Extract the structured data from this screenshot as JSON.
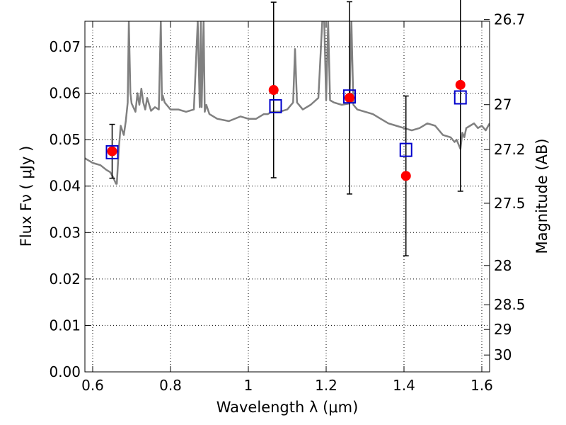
{
  "chart_data": {
    "type": "scatter",
    "xlabel": "Wavelength  λ (μm)",
    "ylabel": "Flux  Fν  ( μJy )",
    "y2label": "Magnitude (AB)",
    "xlim": [
      0.58,
      1.62
    ],
    "ylim": [
      0.0,
      0.0755
    ],
    "x_ticks": [
      0.6,
      0.8,
      1.0,
      1.2,
      1.4,
      1.6
    ],
    "x_tick_labels": [
      "0.6",
      "0.8",
      "1",
      "1.2",
      "1.4",
      "1.6"
    ],
    "y_ticks": [
      0.0,
      0.01,
      0.02,
      0.03,
      0.04,
      0.05,
      0.06,
      0.07
    ],
    "y_tick_labels": [
      "0.00",
      "0.01",
      "0.02",
      "0.03",
      "0.04",
      "0.05",
      "0.06",
      "0.07"
    ],
    "magnitude_ticks": [
      26.7,
      27,
      27.2,
      27.5,
      28,
      28.5,
      29,
      30
    ],
    "magnitude_tick_labels": [
      "26.7",
      "27",
      "27.2",
      "27.5",
      "28",
      "28.5",
      "29",
      "30"
    ],
    "grid": true,
    "series": [
      {
        "kind": "line",
        "color": "#808080",
        "x": [
          0.58,
          0.6,
          0.62,
          0.635,
          0.645,
          0.652,
          0.66,
          0.662,
          0.667,
          0.672,
          0.68,
          0.685,
          0.69,
          0.693,
          0.697,
          0.7,
          0.71,
          0.715,
          0.72,
          0.725,
          0.73,
          0.735,
          0.74,
          0.75,
          0.76,
          0.77,
          0.775,
          0.778,
          0.78,
          0.785,
          0.79,
          0.8,
          0.82,
          0.84,
          0.86,
          0.87,
          0.875,
          0.878,
          0.88,
          0.885,
          0.888,
          0.892,
          0.9,
          0.92,
          0.95,
          0.98,
          1.0,
          1.02,
          1.04,
          1.05,
          1.06,
          1.08,
          1.1,
          1.115,
          1.12,
          1.125,
          1.14,
          1.16,
          1.18,
          1.19,
          1.195,
          1.2,
          1.205,
          1.21,
          1.22,
          1.24,
          1.26,
          1.265,
          1.27,
          1.28,
          1.3,
          1.32,
          1.34,
          1.36,
          1.38,
          1.4,
          1.42,
          1.44,
          1.46,
          1.48,
          1.5,
          1.52,
          1.53,
          1.535,
          1.545,
          1.55,
          1.555,
          1.56,
          1.57,
          1.58,
          1.59,
          1.6,
          1.61,
          1.62
        ],
        "y": [
          0.046,
          0.045,
          0.0445,
          0.0435,
          0.043,
          0.042,
          0.0405,
          0.0405,
          0.048,
          0.053,
          0.051,
          0.054,
          0.058,
          0.0755,
          0.06,
          0.0578,
          0.056,
          0.06,
          0.0575,
          0.061,
          0.058,
          0.0565,
          0.059,
          0.0562,
          0.057,
          0.0565,
          0.0755,
          0.0585,
          0.0595,
          0.058,
          0.0575,
          0.0565,
          0.0565,
          0.056,
          0.0565,
          0.0755,
          0.057,
          0.0755,
          0.057,
          0.0755,
          0.056,
          0.0575,
          0.0555,
          0.0545,
          0.054,
          0.055,
          0.0545,
          0.0545,
          0.0555,
          0.0555,
          0.056,
          0.056,
          0.0565,
          0.058,
          0.0695,
          0.058,
          0.0565,
          0.0575,
          0.059,
          0.0755,
          0.0755,
          0.0585,
          0.0755,
          0.0585,
          0.058,
          0.0575,
          0.0578,
          0.0755,
          0.0575,
          0.0565,
          0.056,
          0.0555,
          0.0545,
          0.0535,
          0.053,
          0.0525,
          0.052,
          0.0525,
          0.0535,
          0.053,
          0.051,
          0.0505,
          0.0495,
          0.05,
          0.048,
          0.0515,
          0.0505,
          0.0525,
          0.053,
          0.0535,
          0.0525,
          0.053,
          0.052,
          0.0535
        ]
      }
    ],
    "observed": {
      "color": "#ff0000",
      "x": [
        0.65,
        1.065,
        1.26,
        1.405,
        1.545
      ],
      "y": [
        0.0475,
        0.0607,
        0.059,
        0.0422,
        0.0618
      ],
      "yerr_low": [
        0.0058,
        0.0189,
        0.0207,
        0.0172,
        0.0229
      ],
      "yerr_high": [
        0.0058,
        0.0189,
        0.0207,
        0.0172,
        0.0229
      ]
    },
    "model": {
      "color": "#0000cc",
      "marker": "open-square",
      "x": [
        0.65,
        1.07,
        1.26,
        1.405,
        1.545
      ],
      "y": [
        0.0473,
        0.0572,
        0.0593,
        0.0478,
        0.0591
      ]
    }
  }
}
